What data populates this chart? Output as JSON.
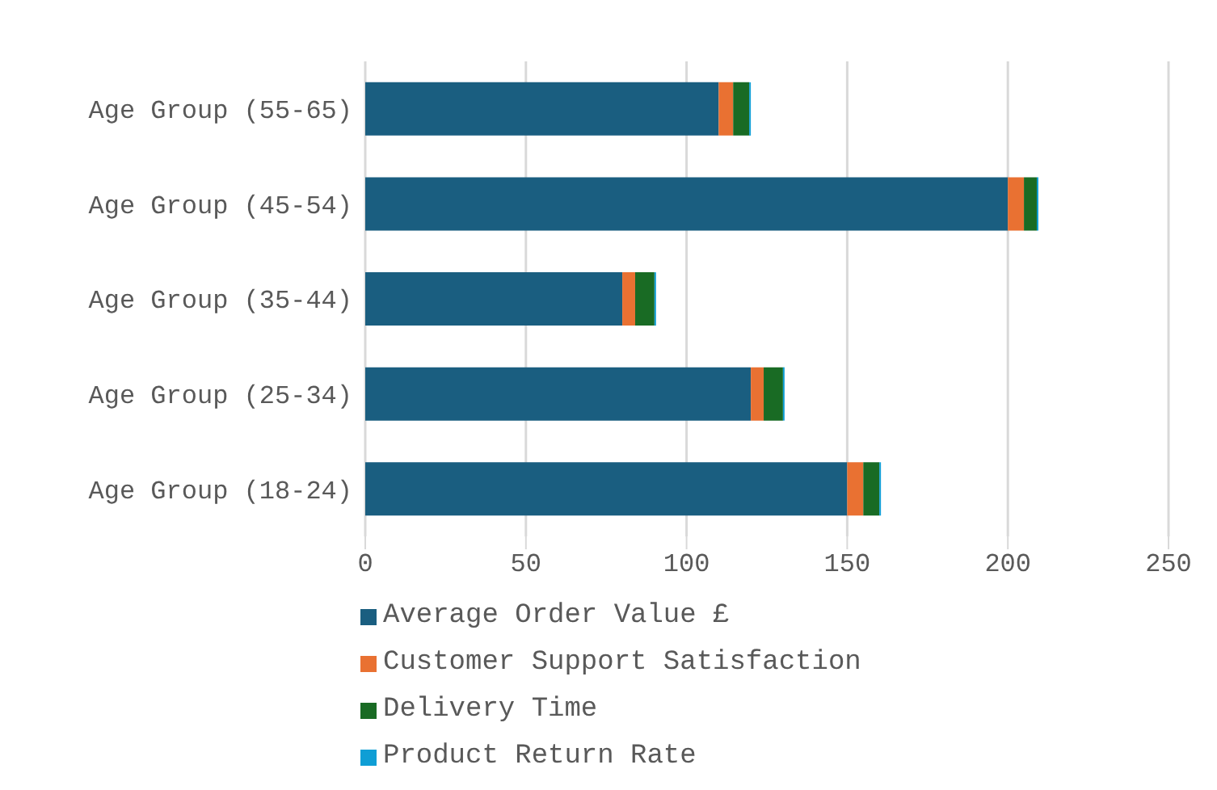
{
  "chart_data": {
    "type": "bar",
    "orientation": "horizontal",
    "stacked": true,
    "categories": [
      "Age Group (55-65)",
      "Age Group (45-54)",
      "Age Group (35-44)",
      "Age Group (25-34)",
      "Age Group (18-24)"
    ],
    "series": [
      {
        "name": "Average Order Value £",
        "color": "#1a5e80",
        "values": [
          110,
          200,
          80,
          120,
          150
        ]
      },
      {
        "name": "Customer Support Satisfaction",
        "color": "#e97132",
        "values": [
          4.5,
          5,
          4,
          4,
          5
        ]
      },
      {
        "name": "Delivery Time",
        "color": "#196b24",
        "values": [
          5,
          4,
          6,
          6,
          5
        ]
      },
      {
        "name": "Product Return Rate",
        "color": "#0f9ed5",
        "values": [
          0.5,
          0.5,
          0.5,
          0.5,
          0.5
        ]
      }
    ],
    "xlim": [
      0,
      250
    ],
    "xticks": [
      0,
      50,
      100,
      150,
      200,
      250
    ],
    "grid": "x",
    "legend": "bottom"
  }
}
